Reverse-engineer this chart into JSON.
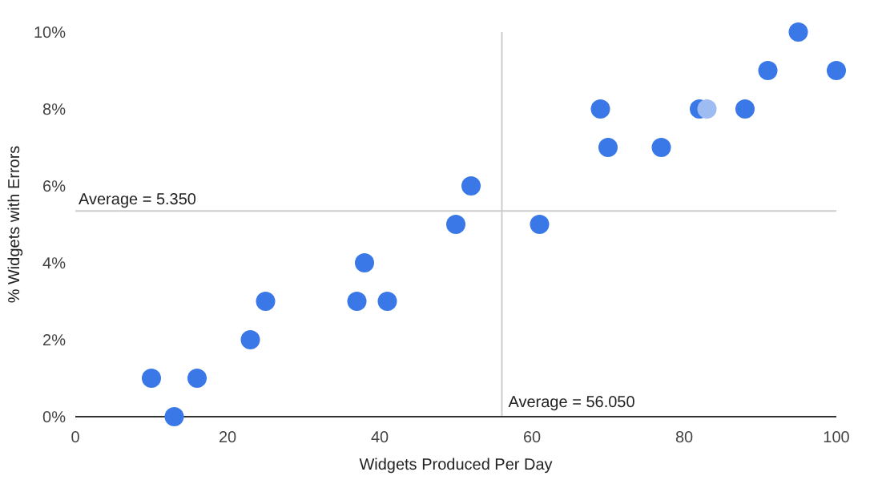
{
  "chart_data": {
    "type": "scatter",
    "xlabel": "Widgets Produced Per Day",
    "ylabel": "% Widgets with Errors",
    "x": [
      10,
      13,
      16,
      23,
      25,
      37,
      38,
      41,
      50,
      52,
      61,
      69,
      70,
      77,
      82,
      83,
      88,
      91,
      95,
      100
    ],
    "values": [
      1,
      0,
      1,
      2,
      3,
      3,
      4,
      3,
      5,
      6,
      5,
      8,
      7,
      7,
      8,
      8,
      8,
      9,
      10,
      9
    ],
    "colors": [
      "#3b78e7",
      "#3b78e7",
      "#3b78e7",
      "#3b78e7",
      "#3b78e7",
      "#3b78e7",
      "#3b78e7",
      "#3b78e7",
      "#3b78e7",
      "#3b78e7",
      "#3b78e7",
      "#3b78e7",
      "#3b78e7",
      "#3b78e7",
      "#3b78e7",
      "#9dbcf2",
      "#3b78e7",
      "#3b78e7",
      "#3b78e7",
      "#3b78e7"
    ],
    "xlim": [
      0,
      100
    ],
    "xticks": [
      0,
      20,
      40,
      60,
      80,
      100
    ],
    "ylim": [
      0,
      10
    ],
    "yticks": [
      {
        "value": 0,
        "label": "0%"
      },
      {
        "value": 2,
        "label": "2%"
      },
      {
        "value": 4,
        "label": "4%"
      },
      {
        "value": 6,
        "label": "6%"
      },
      {
        "value": 8,
        "label": "8%"
      },
      {
        "value": 10,
        "label": "10%"
      }
    ],
    "marker": "circle",
    "grid": false,
    "ref_lines": [
      {
        "axis": "y",
        "value": 5.35,
        "label": "Average = 5.350",
        "color": "#cccccc"
      },
      {
        "axis": "x",
        "value": 56.05,
        "label": "Average = 56.050",
        "color": "#cccccc"
      }
    ]
  }
}
